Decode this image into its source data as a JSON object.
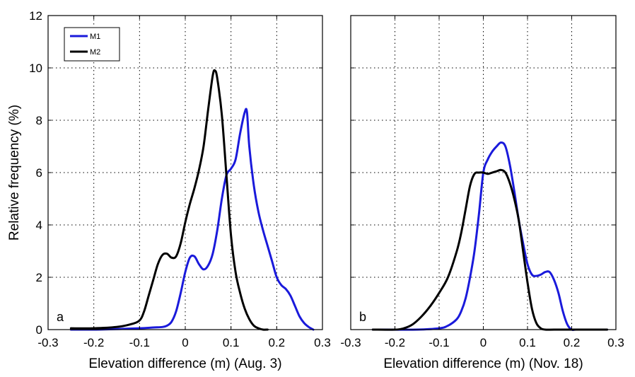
{
  "chart_data": [
    {
      "type": "line",
      "panel_label": "a",
      "xlabel": "Elevation difference (m) (Aug. 3)",
      "ylabel": "Relative frequency (%)",
      "xlim": [
        -0.3,
        0.3
      ],
      "ylim": [
        0,
        12
      ],
      "xticks": [
        -0.3,
        -0.2,
        -0.1,
        0,
        0.1,
        0.2,
        0.3
      ],
      "xtick_labels": [
        "-0.3",
        "-0.2",
        "-0.1",
        "0",
        "0.1",
        "0.2",
        "0.3"
      ],
      "yticks": [
        0,
        2,
        4,
        6,
        8,
        10,
        12
      ],
      "ytick_labels": [
        "0",
        "2",
        "4",
        "6",
        "8",
        "10",
        "12"
      ],
      "grid": true,
      "legend_position": "top-left",
      "series": [
        {
          "name": "M1",
          "color": "#1a1adb",
          "x": [
            -0.25,
            -0.2,
            -0.15,
            -0.1,
            -0.07,
            -0.05,
            -0.04,
            -0.03,
            -0.02,
            -0.01,
            0,
            0.01,
            0.02,
            0.03,
            0.04,
            0.05,
            0.06,
            0.07,
            0.08,
            0.09,
            0.1,
            0.11,
            0.12,
            0.13,
            0.135,
            0.14,
            0.15,
            0.16,
            0.17,
            0.18,
            0.19,
            0.2,
            0.21,
            0.22,
            0.23,
            0.24,
            0.25,
            0.26,
            0.27,
            0.28
          ],
          "y": [
            0,
            0,
            0.02,
            0.05,
            0.08,
            0.1,
            0.15,
            0.3,
            0.7,
            1.4,
            2.2,
            2.75,
            2.8,
            2.5,
            2.3,
            2.45,
            2.9,
            3.8,
            5.0,
            5.9,
            6.15,
            6.5,
            7.5,
            8.3,
            8.3,
            7.0,
            5.5,
            4.5,
            3.8,
            3.2,
            2.6,
            2.0,
            1.7,
            1.55,
            1.3,
            0.9,
            0.5,
            0.25,
            0.1,
            0
          ]
        },
        {
          "name": "M2",
          "color": "#000000",
          "x": [
            -0.25,
            -0.2,
            -0.15,
            -0.12,
            -0.1,
            -0.09,
            -0.08,
            -0.07,
            -0.06,
            -0.05,
            -0.04,
            -0.03,
            -0.02,
            -0.01,
            0,
            0.01,
            0.02,
            0.03,
            0.04,
            0.05,
            0.06,
            0.065,
            0.07,
            0.08,
            0.09,
            0.1,
            0.11,
            0.12,
            0.13,
            0.14,
            0.15,
            0.16,
            0.17,
            0.18
          ],
          "y": [
            0.05,
            0.05,
            0.1,
            0.2,
            0.35,
            0.7,
            1.3,
            1.9,
            2.5,
            2.85,
            2.9,
            2.75,
            2.8,
            3.3,
            4.1,
            4.8,
            5.4,
            6.1,
            7.0,
            8.4,
            9.7,
            9.9,
            9.6,
            8.2,
            5.9,
            3.6,
            2.2,
            1.4,
            0.8,
            0.4,
            0.15,
            0.05,
            0,
            0
          ]
        }
      ]
    },
    {
      "type": "line",
      "panel_label": "b",
      "xlabel": "Elevation difference (m) (Nov. 18)",
      "ylabel": "",
      "xlim": [
        -0.3,
        0.3
      ],
      "ylim": [
        0,
        12
      ],
      "xticks": [
        -0.3,
        -0.2,
        -0.1,
        0,
        0.1,
        0.2,
        0.3
      ],
      "xtick_labels": [
        "-0.3",
        "-0.2",
        "-0.1",
        "0",
        "0.1",
        "0.2",
        "0.3"
      ],
      "yticks": [
        0,
        2,
        4,
        6,
        8,
        10,
        12
      ],
      "ytick_labels": [],
      "grid": true,
      "series": [
        {
          "name": "M1",
          "color": "#1a1adb",
          "x": [
            -0.25,
            -0.15,
            -0.1,
            -0.08,
            -0.06,
            -0.05,
            -0.04,
            -0.03,
            -0.02,
            -0.01,
            0,
            0.01,
            0.02,
            0.03,
            0.04,
            0.05,
            0.06,
            0.07,
            0.08,
            0.09,
            0.1,
            0.11,
            0.12,
            0.13,
            0.14,
            0.15,
            0.16,
            0.17,
            0.18,
            0.19,
            0.2,
            0.21,
            0.25,
            0.28
          ],
          "y": [
            0,
            0,
            0.05,
            0.15,
            0.4,
            0.7,
            1.2,
            2.0,
            3.0,
            4.4,
            6.0,
            6.5,
            6.8,
            7.0,
            7.15,
            7.0,
            6.3,
            5.3,
            4.2,
            3.3,
            2.5,
            2.1,
            2.05,
            2.1,
            2.2,
            2.2,
            1.9,
            1.4,
            0.7,
            0.2,
            0,
            0,
            0,
            0
          ]
        },
        {
          "name": "M2",
          "color": "#000000",
          "x": [
            -0.25,
            -0.2,
            -0.18,
            -0.16,
            -0.14,
            -0.12,
            -0.1,
            -0.08,
            -0.06,
            -0.05,
            -0.04,
            -0.03,
            -0.02,
            -0.01,
            0,
            0.01,
            0.02,
            0.03,
            0.04,
            0.05,
            0.06,
            0.07,
            0.08,
            0.09,
            0.1,
            0.11,
            0.12,
            0.13,
            0.14,
            0.16,
            0.2,
            0.28
          ],
          "y": [
            0,
            0,
            0.05,
            0.2,
            0.5,
            0.9,
            1.4,
            2.0,
            3.0,
            3.7,
            4.6,
            5.5,
            5.95,
            6.0,
            6.0,
            5.95,
            6.0,
            6.05,
            6.1,
            6.0,
            5.6,
            5.0,
            4.2,
            3.0,
            1.8,
            0.8,
            0.25,
            0.05,
            0,
            0,
            0,
            0
          ]
        }
      ]
    }
  ]
}
